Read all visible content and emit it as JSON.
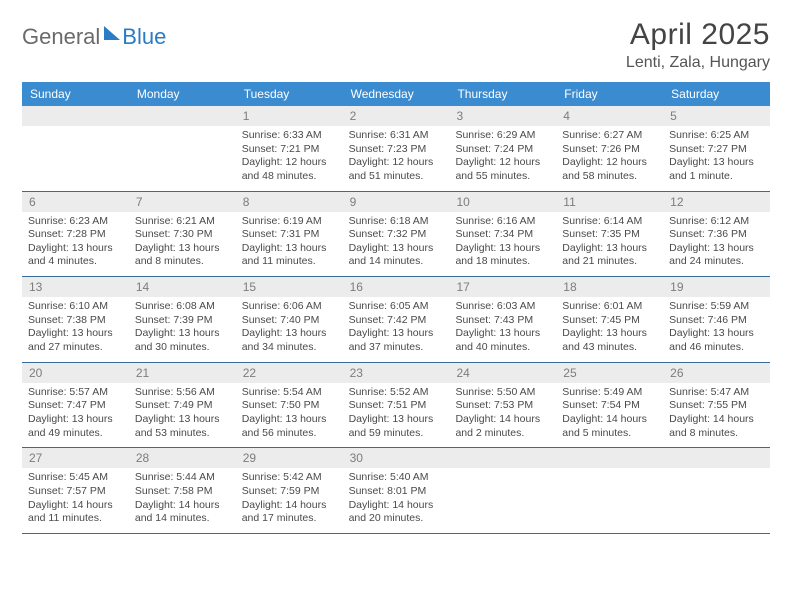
{
  "logo": {
    "text1": "General",
    "text2": "Blue"
  },
  "title": "April 2025",
  "location": "Lenti, Zala, Hungary",
  "weekdays": [
    "Sunday",
    "Monday",
    "Tuesday",
    "Wednesday",
    "Thursday",
    "Friday",
    "Saturday"
  ],
  "colors": {
    "header_bg": "#3a8bcf",
    "header_text": "#ffffff",
    "daynum_bg": "#ececec",
    "daynum_text": "#7d7d7d",
    "row_border": "#3a6a9a",
    "body_text": "#4a4a4a",
    "title_text": "#444444",
    "location_text": "#555555"
  },
  "weeks": [
    [
      {
        "n": "",
        "lines": []
      },
      {
        "n": "",
        "lines": []
      },
      {
        "n": "1",
        "lines": [
          "Sunrise: 6:33 AM",
          "Sunset: 7:21 PM",
          "Daylight: 12 hours and 48 minutes."
        ]
      },
      {
        "n": "2",
        "lines": [
          "Sunrise: 6:31 AM",
          "Sunset: 7:23 PM",
          "Daylight: 12 hours and 51 minutes."
        ]
      },
      {
        "n": "3",
        "lines": [
          "Sunrise: 6:29 AM",
          "Sunset: 7:24 PM",
          "Daylight: 12 hours and 55 minutes."
        ]
      },
      {
        "n": "4",
        "lines": [
          "Sunrise: 6:27 AM",
          "Sunset: 7:26 PM",
          "Daylight: 12 hours and 58 minutes."
        ]
      },
      {
        "n": "5",
        "lines": [
          "Sunrise: 6:25 AM",
          "Sunset: 7:27 PM",
          "Daylight: 13 hours and 1 minute."
        ]
      }
    ],
    [
      {
        "n": "6",
        "lines": [
          "Sunrise: 6:23 AM",
          "Sunset: 7:28 PM",
          "Daylight: 13 hours and 4 minutes."
        ]
      },
      {
        "n": "7",
        "lines": [
          "Sunrise: 6:21 AM",
          "Sunset: 7:30 PM",
          "Daylight: 13 hours and 8 minutes."
        ]
      },
      {
        "n": "8",
        "lines": [
          "Sunrise: 6:19 AM",
          "Sunset: 7:31 PM",
          "Daylight: 13 hours and 11 minutes."
        ]
      },
      {
        "n": "9",
        "lines": [
          "Sunrise: 6:18 AM",
          "Sunset: 7:32 PM",
          "Daylight: 13 hours and 14 minutes."
        ]
      },
      {
        "n": "10",
        "lines": [
          "Sunrise: 6:16 AM",
          "Sunset: 7:34 PM",
          "Daylight: 13 hours and 18 minutes."
        ]
      },
      {
        "n": "11",
        "lines": [
          "Sunrise: 6:14 AM",
          "Sunset: 7:35 PM",
          "Daylight: 13 hours and 21 minutes."
        ]
      },
      {
        "n": "12",
        "lines": [
          "Sunrise: 6:12 AM",
          "Sunset: 7:36 PM",
          "Daylight: 13 hours and 24 minutes."
        ]
      }
    ],
    [
      {
        "n": "13",
        "lines": [
          "Sunrise: 6:10 AM",
          "Sunset: 7:38 PM",
          "Daylight: 13 hours and 27 minutes."
        ]
      },
      {
        "n": "14",
        "lines": [
          "Sunrise: 6:08 AM",
          "Sunset: 7:39 PM",
          "Daylight: 13 hours and 30 minutes."
        ]
      },
      {
        "n": "15",
        "lines": [
          "Sunrise: 6:06 AM",
          "Sunset: 7:40 PM",
          "Daylight: 13 hours and 34 minutes."
        ]
      },
      {
        "n": "16",
        "lines": [
          "Sunrise: 6:05 AM",
          "Sunset: 7:42 PM",
          "Daylight: 13 hours and 37 minutes."
        ]
      },
      {
        "n": "17",
        "lines": [
          "Sunrise: 6:03 AM",
          "Sunset: 7:43 PM",
          "Daylight: 13 hours and 40 minutes."
        ]
      },
      {
        "n": "18",
        "lines": [
          "Sunrise: 6:01 AM",
          "Sunset: 7:45 PM",
          "Daylight: 13 hours and 43 minutes."
        ]
      },
      {
        "n": "19",
        "lines": [
          "Sunrise: 5:59 AM",
          "Sunset: 7:46 PM",
          "Daylight: 13 hours and 46 minutes."
        ]
      }
    ],
    [
      {
        "n": "20",
        "lines": [
          "Sunrise: 5:57 AM",
          "Sunset: 7:47 PM",
          "Daylight: 13 hours and 49 minutes."
        ]
      },
      {
        "n": "21",
        "lines": [
          "Sunrise: 5:56 AM",
          "Sunset: 7:49 PM",
          "Daylight: 13 hours and 53 minutes."
        ]
      },
      {
        "n": "22",
        "lines": [
          "Sunrise: 5:54 AM",
          "Sunset: 7:50 PM",
          "Daylight: 13 hours and 56 minutes."
        ]
      },
      {
        "n": "23",
        "lines": [
          "Sunrise: 5:52 AM",
          "Sunset: 7:51 PM",
          "Daylight: 13 hours and 59 minutes."
        ]
      },
      {
        "n": "24",
        "lines": [
          "Sunrise: 5:50 AM",
          "Sunset: 7:53 PM",
          "Daylight: 14 hours and 2 minutes."
        ]
      },
      {
        "n": "25",
        "lines": [
          "Sunrise: 5:49 AM",
          "Sunset: 7:54 PM",
          "Daylight: 14 hours and 5 minutes."
        ]
      },
      {
        "n": "26",
        "lines": [
          "Sunrise: 5:47 AM",
          "Sunset: 7:55 PM",
          "Daylight: 14 hours and 8 minutes."
        ]
      }
    ],
    [
      {
        "n": "27",
        "lines": [
          "Sunrise: 5:45 AM",
          "Sunset: 7:57 PM",
          "Daylight: 14 hours and 11 minutes."
        ]
      },
      {
        "n": "28",
        "lines": [
          "Sunrise: 5:44 AM",
          "Sunset: 7:58 PM",
          "Daylight: 14 hours and 14 minutes."
        ]
      },
      {
        "n": "29",
        "lines": [
          "Sunrise: 5:42 AM",
          "Sunset: 7:59 PM",
          "Daylight: 14 hours and 17 minutes."
        ]
      },
      {
        "n": "30",
        "lines": [
          "Sunrise: 5:40 AM",
          "Sunset: 8:01 PM",
          "Daylight: 14 hours and 20 minutes."
        ]
      },
      {
        "n": "",
        "lines": []
      },
      {
        "n": "",
        "lines": []
      },
      {
        "n": "",
        "lines": []
      }
    ]
  ]
}
